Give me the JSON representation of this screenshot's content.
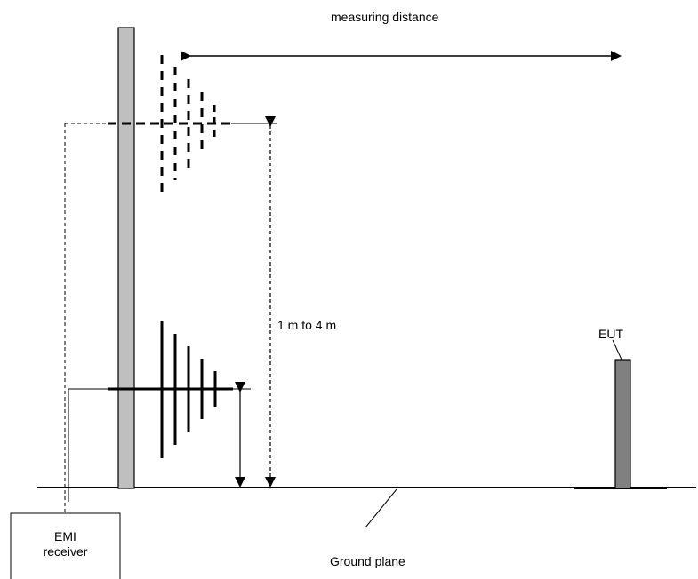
{
  "labels": {
    "measuring_distance": "measuring distance",
    "height_range": "1 m to 4 m",
    "eut": "EUT",
    "emi_receiver_line1": "EMI",
    "emi_receiver_line2": "receiver",
    "ground_plane": "Ground plane"
  },
  "colors": {
    "mast_fill": "#bfbfbf",
    "eut_fill": "#808080",
    "stroke": "#000000"
  }
}
